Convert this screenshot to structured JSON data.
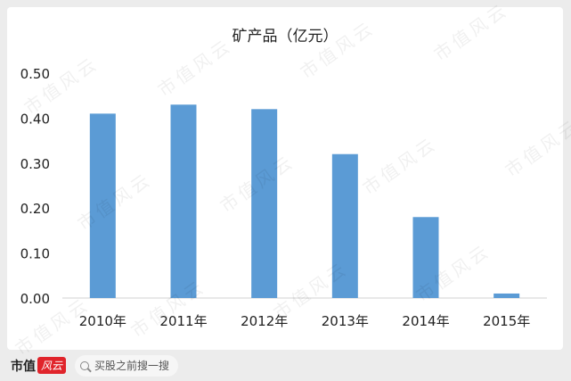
{
  "chart_data": {
    "type": "bar",
    "title": "矿产品（亿元）",
    "categories": [
      "2010年",
      "2011年",
      "2012年",
      "2013年",
      "2014年",
      "2015年"
    ],
    "values": [
      0.41,
      0.43,
      0.42,
      0.32,
      0.18,
      0.01
    ],
    "ylim": [
      0,
      0.5
    ],
    "yticks": [
      "0.00",
      "0.10",
      "0.20",
      "0.30",
      "0.40",
      "0.50"
    ],
    "grid": false,
    "bar_color": "#5b9bd5"
  },
  "watermark": "市值风云",
  "footer": {
    "brand": "市值",
    "brand_badge": "风云",
    "search_text": "买股之前搜一搜"
  }
}
